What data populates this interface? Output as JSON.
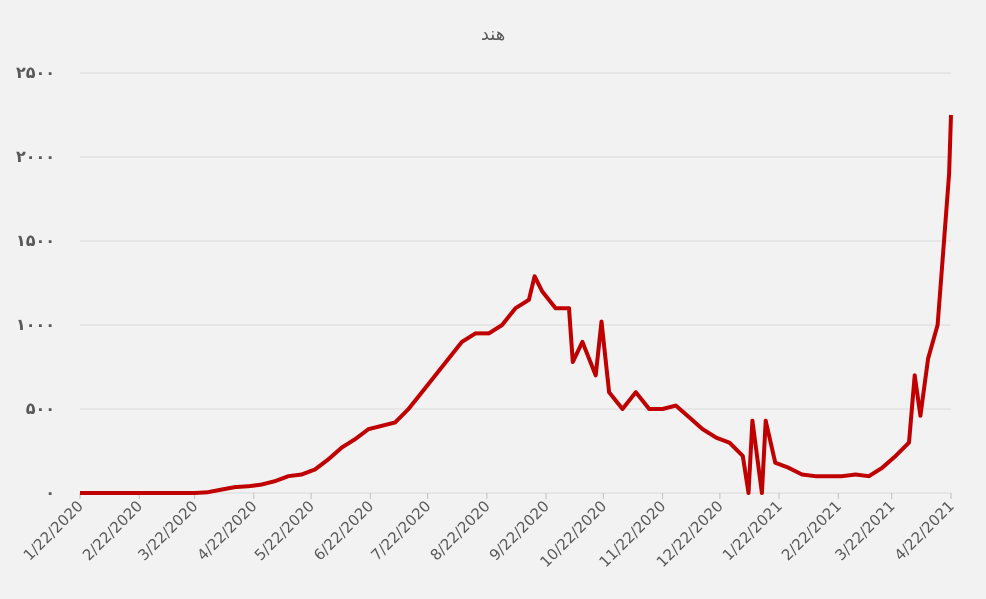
{
  "chart_data": {
    "type": "line",
    "title": "هند",
    "x": [
      "1/22/2020",
      "2/22/2020",
      "3/22/2020",
      "3/29/2020",
      "4/5/2020",
      "4/12/2020",
      "4/19/2020",
      "4/26/2020",
      "5/3/2020",
      "5/10/2020",
      "5/17/2020",
      "5/24/2020",
      "5/31/2020",
      "6/7/2020",
      "6/14/2020",
      "6/21/2020",
      "6/28/2020",
      "7/5/2020",
      "7/12/2020",
      "7/19/2020",
      "7/26/2020",
      "8/2/2020",
      "8/9/2020",
      "8/16/2020",
      "8/23/2020",
      "8/30/2020",
      "9/6/2020",
      "9/13/2020",
      "9/16/2020",
      "9/20/2020",
      "9/27/2020",
      "10/4/2020",
      "10/6/2020",
      "10/11/2020",
      "10/18/2020",
      "10/21/2020",
      "10/25/2020",
      "11/1/2020",
      "11/8/2020",
      "11/15/2020",
      "11/22/2020",
      "11/29/2020",
      "12/6/2020",
      "12/13/2020",
      "12/20/2020",
      "12/27/2020",
      "1/3/2021",
      "1/6/2021",
      "1/8/2021",
      "1/13/2021",
      "1/15/2021",
      "1/20/2021",
      "1/27/2021",
      "2/3/2021",
      "2/10/2021",
      "2/17/2021",
      "2/24/2021",
      "3/3/2021",
      "3/10/2021",
      "3/17/2021",
      "3/24/2021",
      "3/31/2021",
      "4/3/2021",
      "4/6/2021",
      "4/10/2021",
      "4/15/2021",
      "4/19/2021",
      "4/21/2021",
      "4/22/2021"
    ],
    "series": [
      {
        "name": "هند",
        "color": "#c00000",
        "values": [
          0,
          0,
          0,
          5,
          20,
          35,
          40,
          50,
          70,
          100,
          110,
          140,
          200,
          270,
          320,
          380,
          400,
          420,
          500,
          600,
          700,
          800,
          900,
          950,
          950,
          1000,
          1100,
          1150,
          1290,
          1200,
          1100,
          1100,
          780,
          900,
          700,
          1020,
          600,
          500,
          600,
          500,
          500,
          520,
          450,
          380,
          330,
          300,
          220,
          0,
          430,
          0,
          430,
          180,
          150,
          110,
          100,
          100,
          100,
          110,
          100,
          150,
          220,
          300,
          700,
          460,
          800,
          1000,
          1600,
          1900,
          2250
        ]
      }
    ],
    "xlim": [
      "1/22/2020",
      "4/22/2021"
    ],
    "xticks": [
      "1/22/2020",
      "2/22/2020",
      "3/22/2020",
      "4/22/2020",
      "5/22/2020",
      "6/22/2020",
      "7/22/2020",
      "8/22/2020",
      "9/22/2020",
      "10/22/2020",
      "11/22/2020",
      "12/22/2020",
      "1/22/2021",
      "2/22/2021",
      "3/22/2021",
      "4/22/2021"
    ],
    "ylim": [
      0,
      2500
    ],
    "yticks": [
      {
        "value": 0,
        "label": "۰"
      },
      {
        "value": 500,
        "label": "۵۰۰"
      },
      {
        "value": 1000,
        "label": "۱۰۰۰"
      },
      {
        "value": 1500,
        "label": "۱۵۰۰"
      },
      {
        "value": 2000,
        "label": "۲۰۰۰"
      },
      {
        "value": 2500,
        "label": "۲۵۰۰"
      }
    ],
    "grid": true
  }
}
